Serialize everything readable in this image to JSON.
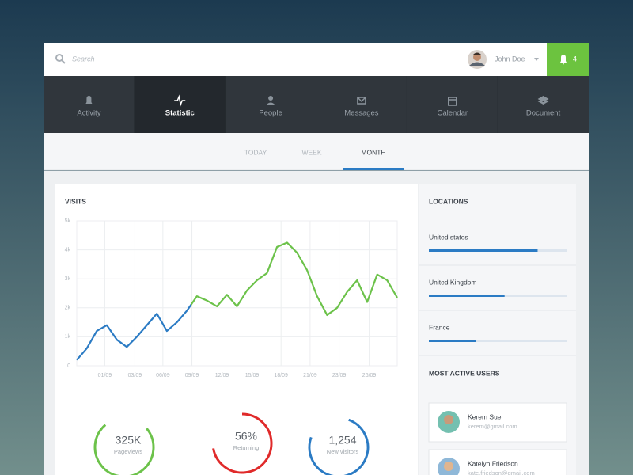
{
  "search_placeholder": "Search",
  "user": {
    "name": "John Doe"
  },
  "notifications": 4,
  "nav": {
    "tabs": [
      "Activity",
      "Statistic",
      "People",
      "Messages",
      "Calendar",
      "Document"
    ],
    "active": "Statistic"
  },
  "periods": {
    "tabs": [
      "TODAY",
      "WEEK",
      "MONTH"
    ],
    "active": "MONTH"
  },
  "chart_data": {
    "type": "line",
    "title": "VISITS",
    "x": [
      0,
      1,
      2,
      3,
      4,
      5,
      6,
      7,
      8,
      9,
      10,
      11,
      12,
      13,
      14,
      15,
      16,
      17,
      18,
      19,
      20,
      21,
      22,
      23,
      24,
      25,
      26,
      27,
      28,
      29,
      30,
      31,
      32
    ],
    "series": [
      {
        "values": [
          200,
          600,
          1200,
          1400,
          900,
          650,
          1000,
          1400,
          1800,
          1200,
          1500,
          1900,
          2400,
          2250,
          2050,
          2450,
          2050,
          2600,
          2950,
          3200,
          4100,
          4250,
          3900,
          3300,
          2400,
          1750,
          2000,
          2550,
          2950,
          2200,
          3150,
          2950,
          2350
        ],
        "color": "#2b7bc4",
        "color_end": "#6cc24a"
      }
    ],
    "xlim": [
      0,
      32
    ],
    "xticks": [
      {
        "value": 2.8,
        "label": "01/09"
      },
      {
        "value": 5.8,
        "label": "03/09"
      },
      {
        "value": 8.6,
        "label": "06/09"
      },
      {
        "value": 11.5,
        "label": "09/09"
      },
      {
        "value": 14.5,
        "label": "12/09"
      },
      {
        "value": 17.5,
        "label": "15/09"
      },
      {
        "value": 20.4,
        "label": "18/09"
      },
      {
        "value": 23.3,
        "label": "21/09"
      },
      {
        "value": 26.2,
        "label": "23/09"
      },
      {
        "value": 29.2,
        "label": "26/09"
      }
    ],
    "ylim": [
      0,
      5000
    ],
    "yticks": [
      0,
      {
        "value": 1000,
        "label": "1k"
      },
      {
        "value": 2000,
        "label": "2k"
      },
      {
        "value": 3000,
        "label": "3k"
      },
      {
        "value": 4000,
        "label": "4k"
      },
      {
        "value": 5000,
        "label": "5k"
      }
    ],
    "grid": true
  },
  "stats": [
    {
      "value": "325K",
      "label": "Pageviews",
      "color": "#6cc24a"
    },
    {
      "value": "56%",
      "label": "Returning",
      "color": "#e02a2a"
    },
    {
      "value": "1,254",
      "label": "New visitors",
      "color": "#2b7bc4"
    }
  ],
  "locations": {
    "title": "LOCATIONS",
    "items": [
      {
        "name": "United states",
        "value": 79
      },
      {
        "name": "United Kingdom",
        "value": 55
      },
      {
        "name": "France",
        "value": 34
      }
    ],
    "color": "#2b7bc4"
  },
  "active_users": {
    "title": "MOST ACTIVE USERS",
    "items": [
      {
        "name": "Kerem Suer",
        "email": "kerem@gmail.com"
      },
      {
        "name": "Katelyn Friedson",
        "email": "kate.friedson@gmail.com"
      }
    ]
  }
}
